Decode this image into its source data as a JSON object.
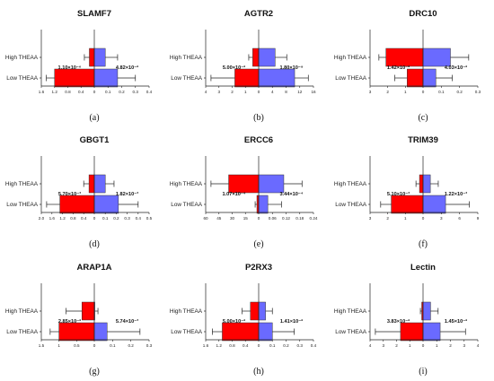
{
  "groups": [
    "High THEAA",
    "Low THEAA"
  ],
  "colors": {
    "left": "#ff0000",
    "right": "#6a6aff",
    "axis": "#222222"
  },
  "chart_data": [
    {
      "type": "bar",
      "title": "SLAMF7",
      "panel_label": "(a)",
      "categories": [
        "High THEAA",
        "Low THEAA"
      ],
      "left_ticks": [
        1.6,
        1.2,
        0.8,
        0.4,
        0
      ],
      "right_ticks": [
        0,
        0.1,
        0.2,
        0.3,
        0.4
      ],
      "tick_labels": {
        "left": [
          "1.6",
          "1.2",
          "0.8",
          "0.4",
          "0"
        ],
        "right": [
          "0.1",
          "0.2",
          "0.3",
          "0.4"
        ]
      },
      "series": [
        {
          "name": "left",
          "mean": [
            0.15,
            1.2
          ],
          "error": [
            0.3,
            1.45
          ]
        },
        {
          "name": "right",
          "mean": [
            0.08,
            0.17
          ],
          "error": [
            0.17,
            0.3
          ]
        }
      ],
      "pvalues": [
        "1.10×10⁻⁶",
        "4.82×10⁻²"
      ]
    },
    {
      "type": "bar",
      "title": "AGTR2",
      "panel_label": "(b)",
      "categories": [
        "High THEAA",
        "Low THEAA"
      ],
      "left_ticks": [
        4,
        3,
        2,
        1,
        0
      ],
      "right_ticks": [
        0,
        4,
        8,
        12,
        16
      ],
      "tick_labels": {
        "left": [
          "4",
          "3",
          "2",
          "1",
          "0"
        ],
        "right": [
          "0",
          "4",
          "8",
          "12",
          "16"
        ]
      },
      "series": [
        {
          "name": "left",
          "mean": [
            0.45,
            1.8
          ],
          "error": [
            0.75,
            3.6
          ]
        },
        {
          "name": "right",
          "mean": [
            4.8,
            10.5
          ],
          "error": [
            8.2,
            14.5
          ]
        }
      ],
      "pvalues": [
        "5.00×10⁻²",
        "1.80×10⁻⁹"
      ]
    },
    {
      "type": "bar",
      "title": "DRC10",
      "panel_label": "(c)",
      "categories": [
        "High THEAA",
        "Low THEAA"
      ],
      "left_ticks": [
        3,
        2,
        1,
        0
      ],
      "right_ticks": [
        0,
        0.1,
        0.2,
        0.3
      ],
      "tick_labels": {
        "left": [
          "3",
          "2",
          "1",
          "0"
        ],
        "right": [
          "0",
          "0.1",
          "0.2",
          "0.3"
        ]
      },
      "series": [
        {
          "name": "left",
          "mean": [
            2.1,
            0.9
          ],
          "error": [
            2.5,
            1.6
          ]
        },
        {
          "name": "right",
          "mean": [
            0.15,
            0.07
          ],
          "error": [
            0.25,
            0.16
          ]
        }
      ],
      "pvalues": [
        "1.42×10⁻²",
        "4.03×10⁻²"
      ]
    },
    {
      "type": "bar",
      "title": "GBGT1",
      "panel_label": "(d)",
      "categories": [
        "High THEAA",
        "Low THEAA"
      ],
      "left_ticks": [
        2.0,
        1.6,
        1.2,
        0.8,
        0.4,
        0
      ],
      "right_ticks": [
        0,
        0.1,
        0.2,
        0.3,
        0.4,
        0.5
      ],
      "tick_labels": {
        "left": [
          "2.0",
          "1.6",
          "1.2",
          "0.8",
          "0.4",
          "0"
        ],
        "right": [
          "0.1",
          "0.2",
          "0.3",
          "0.4",
          "0.5"
        ]
      },
      "series": [
        {
          "name": "left",
          "mean": [
            0.2,
            1.3
          ],
          "error": [
            0.4,
            1.8
          ]
        },
        {
          "name": "right",
          "mean": [
            0.1,
            0.22
          ],
          "error": [
            0.18,
            0.4
          ]
        }
      ],
      "pvalues": [
        "5.70×10⁻³",
        "1.82×10⁻³"
      ]
    },
    {
      "type": "bar",
      "title": "ERCC6",
      "panel_label": "(e)",
      "categories": [
        "High THEAA",
        "Low THEAA"
      ],
      "left_ticks": [
        60,
        45,
        30,
        15,
        0
      ],
      "right_ticks": [
        0,
        0.06,
        0.12,
        0.18,
        0.24
      ],
      "tick_labels": {
        "left": [
          "60",
          "45",
          "30",
          "15",
          "0"
        ],
        "right": [
          "0",
          "0.06",
          "0.12",
          "0.18",
          "0.24"
        ]
      },
      "series": [
        {
          "name": "left",
          "mean": [
            34,
            2
          ],
          "error": [
            54,
            4
          ]
        },
        {
          "name": "right",
          "mean": [
            0.11,
            0.04
          ],
          "error": [
            0.19,
            0.1
          ]
        }
      ],
      "pvalues": [
        "1.07×10⁻⁴",
        "3.44×10⁻⁴"
      ]
    },
    {
      "type": "bar",
      "title": "TRIM39",
      "panel_label": "(f)",
      "categories": [
        "High THEAA",
        "Low THEAA"
      ],
      "left_ticks": [
        3,
        2,
        1,
        0
      ],
      "right_ticks": [
        0,
        3,
        6,
        9
      ],
      "tick_labels": {
        "left": [
          "3",
          "2",
          "1",
          "0"
        ],
        "right": [
          "0",
          "3",
          "6",
          "9"
        ]
      },
      "series": [
        {
          "name": "left",
          "mean": [
            0.2,
            1.8
          ],
          "error": [
            0.4,
            2.4
          ]
        },
        {
          "name": "right",
          "mean": [
            1.2,
            3.7
          ],
          "error": [
            2.5,
            7.6
          ]
        }
      ],
      "pvalues": [
        "5.10×10⁻³",
        "1.22×10⁻³"
      ]
    },
    {
      "type": "bar",
      "title": "ARAP1A",
      "panel_label": "(g)",
      "categories": [
        "High THEAA",
        "Low THEAA"
      ],
      "left_ticks": [
        1.5,
        1,
        0.5,
        0
      ],
      "right_ticks": [
        0,
        0.1,
        0.2,
        0.3
      ],
      "tick_labels": {
        "left": [
          "1.5",
          "1",
          "0.5",
          "0"
        ],
        "right": [
          "0",
          "0.1",
          "0.2",
          "0.3"
        ]
      },
      "series": [
        {
          "name": "left",
          "mean": [
            0.35,
            1.0
          ],
          "error": [
            0.8,
            1.25
          ]
        },
        {
          "name": "right",
          "mean": [
            0.0,
            0.07
          ],
          "error": [
            0.02,
            0.25
          ]
        }
      ],
      "pvalues": [
        "2.85×10⁻²",
        "5.74×10⁻³"
      ]
    },
    {
      "type": "bar",
      "title": "P2RX3",
      "panel_label": "(h)",
      "categories": [
        "High THEAA",
        "Low THEAA"
      ],
      "left_ticks": [
        1.6,
        1.2,
        0.8,
        0.4,
        0
      ],
      "right_ticks": [
        0,
        0.1,
        0.2,
        0.3,
        0.4
      ],
      "tick_labels": {
        "left": [
          "1.6",
          "1.2",
          "0.8",
          "0.4",
          "0"
        ],
        "right": [
          "0",
          "0.1",
          "0.2",
          "0.3",
          "0.4"
        ]
      },
      "series": [
        {
          "name": "left",
          "mean": [
            0.25,
            1.1
          ],
          "error": [
            0.5,
            1.4
          ]
        },
        {
          "name": "right",
          "mean": [
            0.05,
            0.1
          ],
          "error": [
            0.1,
            0.26
          ]
        }
      ],
      "pvalues": [
        "5.00×10⁻²",
        "1.41×10⁻²"
      ]
    },
    {
      "type": "bar",
      "title": "Lectin",
      "panel_label": "(i)",
      "categories": [
        "High THEAA",
        "Low THEAA"
      ],
      "left_ticks": [
        4,
        3,
        2,
        1,
        0
      ],
      "right_ticks": [
        0,
        1,
        2,
        3,
        4
      ],
      "tick_labels": {
        "left": [
          "4",
          "3",
          "2",
          "1",
          "0"
        ],
        "right": [
          "0",
          "1",
          "2",
          "3",
          "4"
        ]
      },
      "series": [
        {
          "name": "left",
          "mean": [
            0.1,
            1.7
          ],
          "error": [
            0.2,
            3.6
          ]
        },
        {
          "name": "right",
          "mean": [
            0.55,
            1.25
          ],
          "error": [
            1.1,
            3.1
          ]
        }
      ],
      "pvalues": [
        "3.83×10⁻²",
        "1.45×10⁻²"
      ]
    }
  ]
}
